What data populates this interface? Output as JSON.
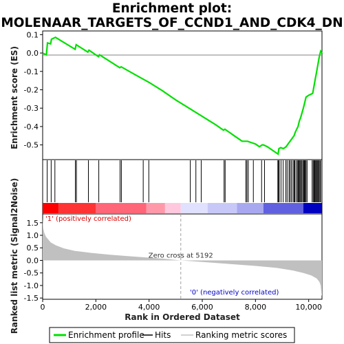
{
  "title_line1": "Enrichment plot:",
  "title_line2": "MOLENAAR_TARGETS_OF_CCND1_AND_CDK4_DN",
  "colors": {
    "enrichment_line": "#00e000",
    "hits": "#000000",
    "metric_fill": "#c0c0c0",
    "pos_label": "#dd0000",
    "neg_label": "#0000cc",
    "zero_line": "#a0a0a0"
  },
  "chart_data": [
    {
      "type": "line",
      "name": "enrichment-profile",
      "ylabel": "Enrichment score (ES)",
      "xlim": [
        0,
        10500
      ],
      "ylim": [
        -0.58,
        0.12
      ],
      "yticks": [
        0.1,
        0.0,
        -0.1,
        -0.2,
        -0.3,
        -0.4,
        -0.5
      ],
      "ytick_labels": [
        "0.1",
        "0.0",
        "-0.1",
        "-0.2",
        "-0.3",
        "-0.4",
        "-0.5"
      ],
      "x": [
        0,
        140,
        180,
        300,
        330,
        480,
        1220,
        1260,
        1700,
        1740,
        2100,
        2140,
        2900,
        2950,
        3500,
        4000,
        4500,
        5000,
        5500,
        6000,
        6500,
        6800,
        6850,
        7000,
        7200,
        7500,
        7650,
        7700,
        7900,
        8000,
        8150,
        8250,
        8300,
        8450,
        8700,
        8850,
        8880,
        8950,
        9050,
        9150,
        9200,
        9300,
        9400,
        9450,
        9500,
        9600,
        9650,
        9700,
        9800,
        9850,
        9900,
        10000,
        10150,
        10200,
        10250,
        10300,
        10350,
        10400,
        10450,
        10500
      ],
      "y": [
        0.0,
        -0.01,
        0.055,
        0.05,
        0.075,
        0.085,
        0.02,
        0.045,
        0.005,
        0.015,
        -0.02,
        -0.01,
        -0.08,
        -0.075,
        -0.12,
        -0.16,
        -0.205,
        -0.255,
        -0.3,
        -0.345,
        -0.39,
        -0.42,
        -0.415,
        -0.43,
        -0.45,
        -0.48,
        -0.48,
        -0.48,
        -0.49,
        -0.495,
        -0.51,
        -0.5,
        -0.5,
        -0.51,
        -0.535,
        -0.55,
        -0.52,
        -0.515,
        -0.52,
        -0.51,
        -0.5,
        -0.48,
        -0.46,
        -0.45,
        -0.43,
        -0.4,
        -0.37,
        -0.35,
        -0.3,
        -0.27,
        -0.24,
        -0.23,
        -0.22,
        -0.18,
        -0.14,
        -0.1,
        -0.06,
        -0.02,
        0.01,
        0.0
      ]
    },
    {
      "type": "scatter",
      "name": "hits",
      "hit_positions": [
        170,
        320,
        460,
        1230,
        1270,
        1720,
        2110,
        2910,
        2960,
        3780,
        3990,
        5550,
        5760,
        5960,
        6820,
        6860,
        7640,
        7680,
        7730,
        7920,
        8230,
        8340,
        8840,
        8870,
        8890,
        8960,
        9040,
        9140,
        9190,
        9260,
        9300,
        9350,
        9410,
        9450,
        9480,
        9530,
        9580,
        9610,
        9640,
        9670,
        9700,
        9740,
        9780,
        9810,
        9840,
        9870,
        9900,
        9940,
        10130,
        10170,
        10200,
        10230,
        10260,
        10290,
        10320,
        10350,
        10380,
        10420,
        10450
      ]
    },
    {
      "type": "area",
      "name": "ranked-list-metric",
      "xlabel": "Rank in Ordered Dataset",
      "ylabel": "Ranked list metric (Signal2Noise)",
      "xlim": [
        0,
        10500
      ],
      "ylim": [
        -1.55,
        1.85
      ],
      "xticks": [
        0,
        2000,
        4000,
        6000,
        8000,
        10000
      ],
      "xtick_labels": [
        "0",
        "2,000",
        "4,000",
        "6,000",
        "8,000",
        "10,000"
      ],
      "yticks": [
        1.5,
        1.0,
        0.5,
        0.0,
        -0.5,
        -1.0,
        -1.5
      ],
      "ytick_labels": [
        "1.5",
        "1.0",
        "0.5",
        "0.0",
        "-0.5",
        "-1.0",
        "-1.5"
      ],
      "x": [
        0,
        20,
        60,
        120,
        200,
        300,
        500,
        800,
        1200,
        1800,
        2500,
        3200,
        4000,
        4600,
        5192,
        6000,
        7000,
        8000,
        8800,
        9400,
        9800,
        10100,
        10300,
        10400,
        10450,
        10470,
        10490,
        10500
      ],
      "values": [
        1.7,
        1.3,
        1.1,
        0.95,
        0.85,
        0.72,
        0.6,
        0.48,
        0.38,
        0.3,
        0.23,
        0.17,
        0.11,
        0.06,
        0.0,
        -0.06,
        -0.14,
        -0.22,
        -0.3,
        -0.4,
        -0.5,
        -0.6,
        -0.72,
        -0.85,
        -1.0,
        -1.2,
        -1.4,
        -1.4
      ],
      "zero_cross_label": "Zero cross at 5192",
      "zero_cross": 5192,
      "pos_label": "'1' (positively correlated)",
      "neg_label": "'0' (negatively correlated)"
    }
  ],
  "legend": [
    {
      "label": "Enrichment profile",
      "kind": "line",
      "color": "#00e000"
    },
    {
      "label": "Hits",
      "kind": "line",
      "color": "#000000"
    },
    {
      "label": "Ranking metric scores",
      "kind": "line",
      "color": "#c0c0c0"
    }
  ],
  "heatbar": {
    "colors_pos": [
      "#ff0000",
      "#ff3333",
      "#ff6677",
      "#ff99aa",
      "#ffc8dd"
    ],
    "colors_neg": [
      "#e0e0ff",
      "#c8c8f8",
      "#a8a8f0",
      "#6060e0",
      "#0000c0"
    ]
  }
}
